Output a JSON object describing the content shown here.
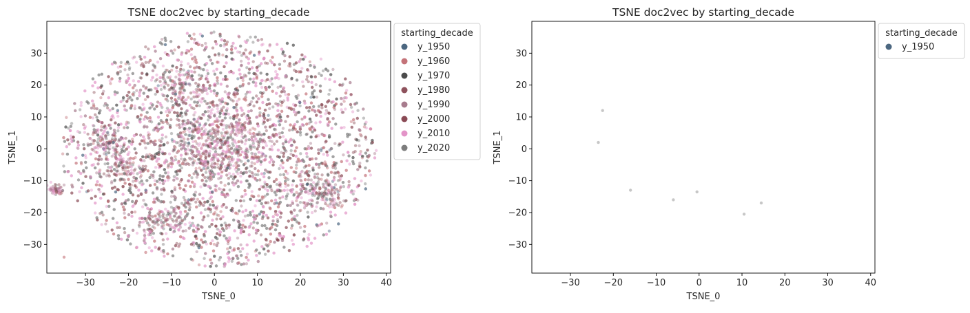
{
  "chart_data": [
    {
      "type": "scatter",
      "title": "TSNE doc2vec by starting_decade",
      "xlabel": "TSNE_0",
      "ylabel": "TSNE_1",
      "xlim": [
        -39,
        41
      ],
      "ylim": [
        -39,
        40
      ],
      "xticks": [
        -30,
        -20,
        -10,
        0,
        10,
        20,
        30,
        40
      ],
      "yticks": [
        -30,
        -20,
        -10,
        0,
        10,
        20,
        30
      ],
      "xtick_labels": [
        "−30",
        "−20",
        "−10",
        "0",
        "10",
        "20",
        "30",
        "40"
      ],
      "ytick_labels": [
        "−30",
        "−20",
        "−10",
        "0",
        "10",
        "20",
        "30"
      ],
      "grid": false,
      "legend": {
        "title": "starting_decade",
        "placement": "outside upper right",
        "entries": [
          {
            "label": "y_1950",
            "color": "#4c6780"
          },
          {
            "label": "y_1960",
            "color": "#c47379"
          },
          {
            "label": "y_1970",
            "color": "#4b4b4b"
          },
          {
            "label": "y_1980",
            "color": "#8e525c"
          },
          {
            "label": "y_1990",
            "color": "#a87c8e"
          },
          {
            "label": "y_2000",
            "color": "#8a4a55"
          },
          {
            "label": "y_2010",
            "color": "#e394c8"
          },
          {
            "label": "y_2020",
            "color": "#7d7d7d"
          }
        ]
      },
      "note_series": "dense cloud of several thousand semi-transparent points, all decades mixed; overall approx. ellipse centered (1,0), half-widths ~36 (x) and ~36 (y); denser clusters near (-37,-13), (25,-13), (-25,2), (-8,20), (1,2)",
      "series": [
        {
          "name": "y_1950",
          "x": [
            -22.5,
            -23.5,
            -16,
            -6,
            -0.5,
            10.5,
            14.5
          ],
          "y": [
            12,
            2,
            -13,
            -16,
            -13.5,
            -20.5,
            -17
          ]
        },
        {
          "name": "y_1960",
          "x": [
            -35,
            -16
          ],
          "y": [
            -34,
            -32.5
          ]
        }
      ]
    },
    {
      "type": "scatter",
      "title": "TSNE doc2vec by starting_decade",
      "xlabel": "TSNE_0",
      "ylabel": "TSNE_1",
      "xlim": [
        -39,
        41
      ],
      "ylim": [
        -39,
        40
      ],
      "xticks": [
        -30,
        -20,
        -10,
        0,
        10,
        20,
        30,
        40
      ],
      "yticks": [
        -30,
        -20,
        -10,
        0,
        10,
        20,
        30
      ],
      "xtick_labels": [
        "−30",
        "−20",
        "−10",
        "0",
        "10",
        "20",
        "30",
        "40"
      ],
      "ytick_labels": [
        "−30",
        "−20",
        "−10",
        "0",
        "10",
        "20",
        "30"
      ],
      "grid": false,
      "legend": {
        "title": "starting_decade",
        "placement": "outside upper right",
        "entries": [
          {
            "label": "y_1950",
            "color": "#4c6780"
          }
        ]
      },
      "series": [
        {
          "name": "y_1950",
          "x": [
            -22.5,
            -23.5,
            -16,
            -6,
            -0.5,
            10.5,
            14.5
          ],
          "y": [
            12,
            2,
            -13,
            -16,
            -13.5,
            -20.5,
            -17
          ]
        }
      ]
    }
  ]
}
